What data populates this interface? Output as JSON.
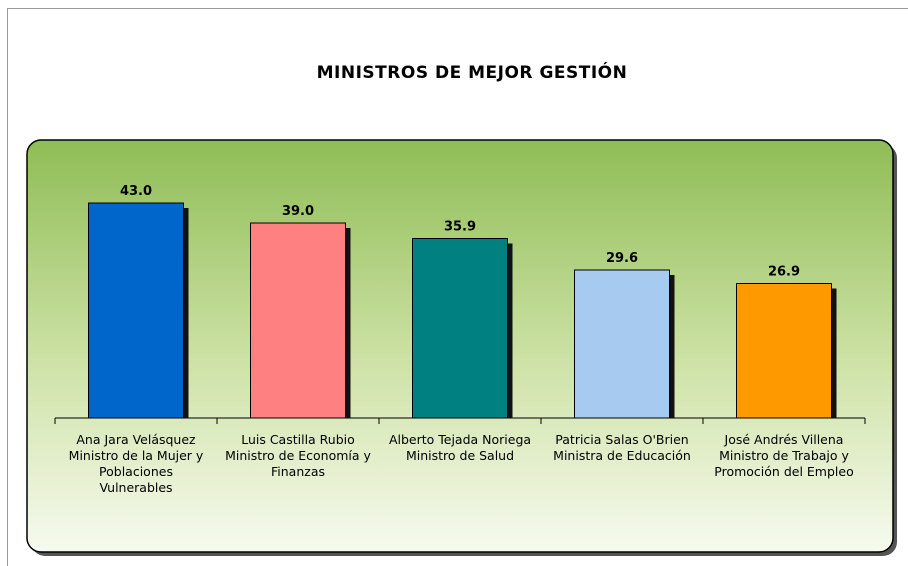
{
  "chart_data": {
    "type": "bar",
    "title": "MINISTROS DE MEJOR GESTIÓN",
    "categories": [
      "Ana Jara Velásquez\nMinistro de la Mujer y\nPoblaciones\nVulnerables",
      "Luis Castilla Rubio\nMinistro de Economía y\nFinanzas",
      "Alberto Tejada Noriega\nMinistro de Salud",
      "Patricia Salas O'Brien\nMinistra de Educación",
      "José Andrés Villena\nMinistro de Trabajo y\nPromoción del Empleo"
    ],
    "values": [
      43,
      39,
      35.9,
      29.6,
      26.9
    ],
    "value_labels": [
      "43.0",
      "39.0",
      "35.9",
      "29.6",
      "26.9"
    ],
    "colors": [
      "#0066cc",
      "#ff8080",
      "#008080",
      "#a6caf0",
      "#ff9900"
    ]
  }
}
